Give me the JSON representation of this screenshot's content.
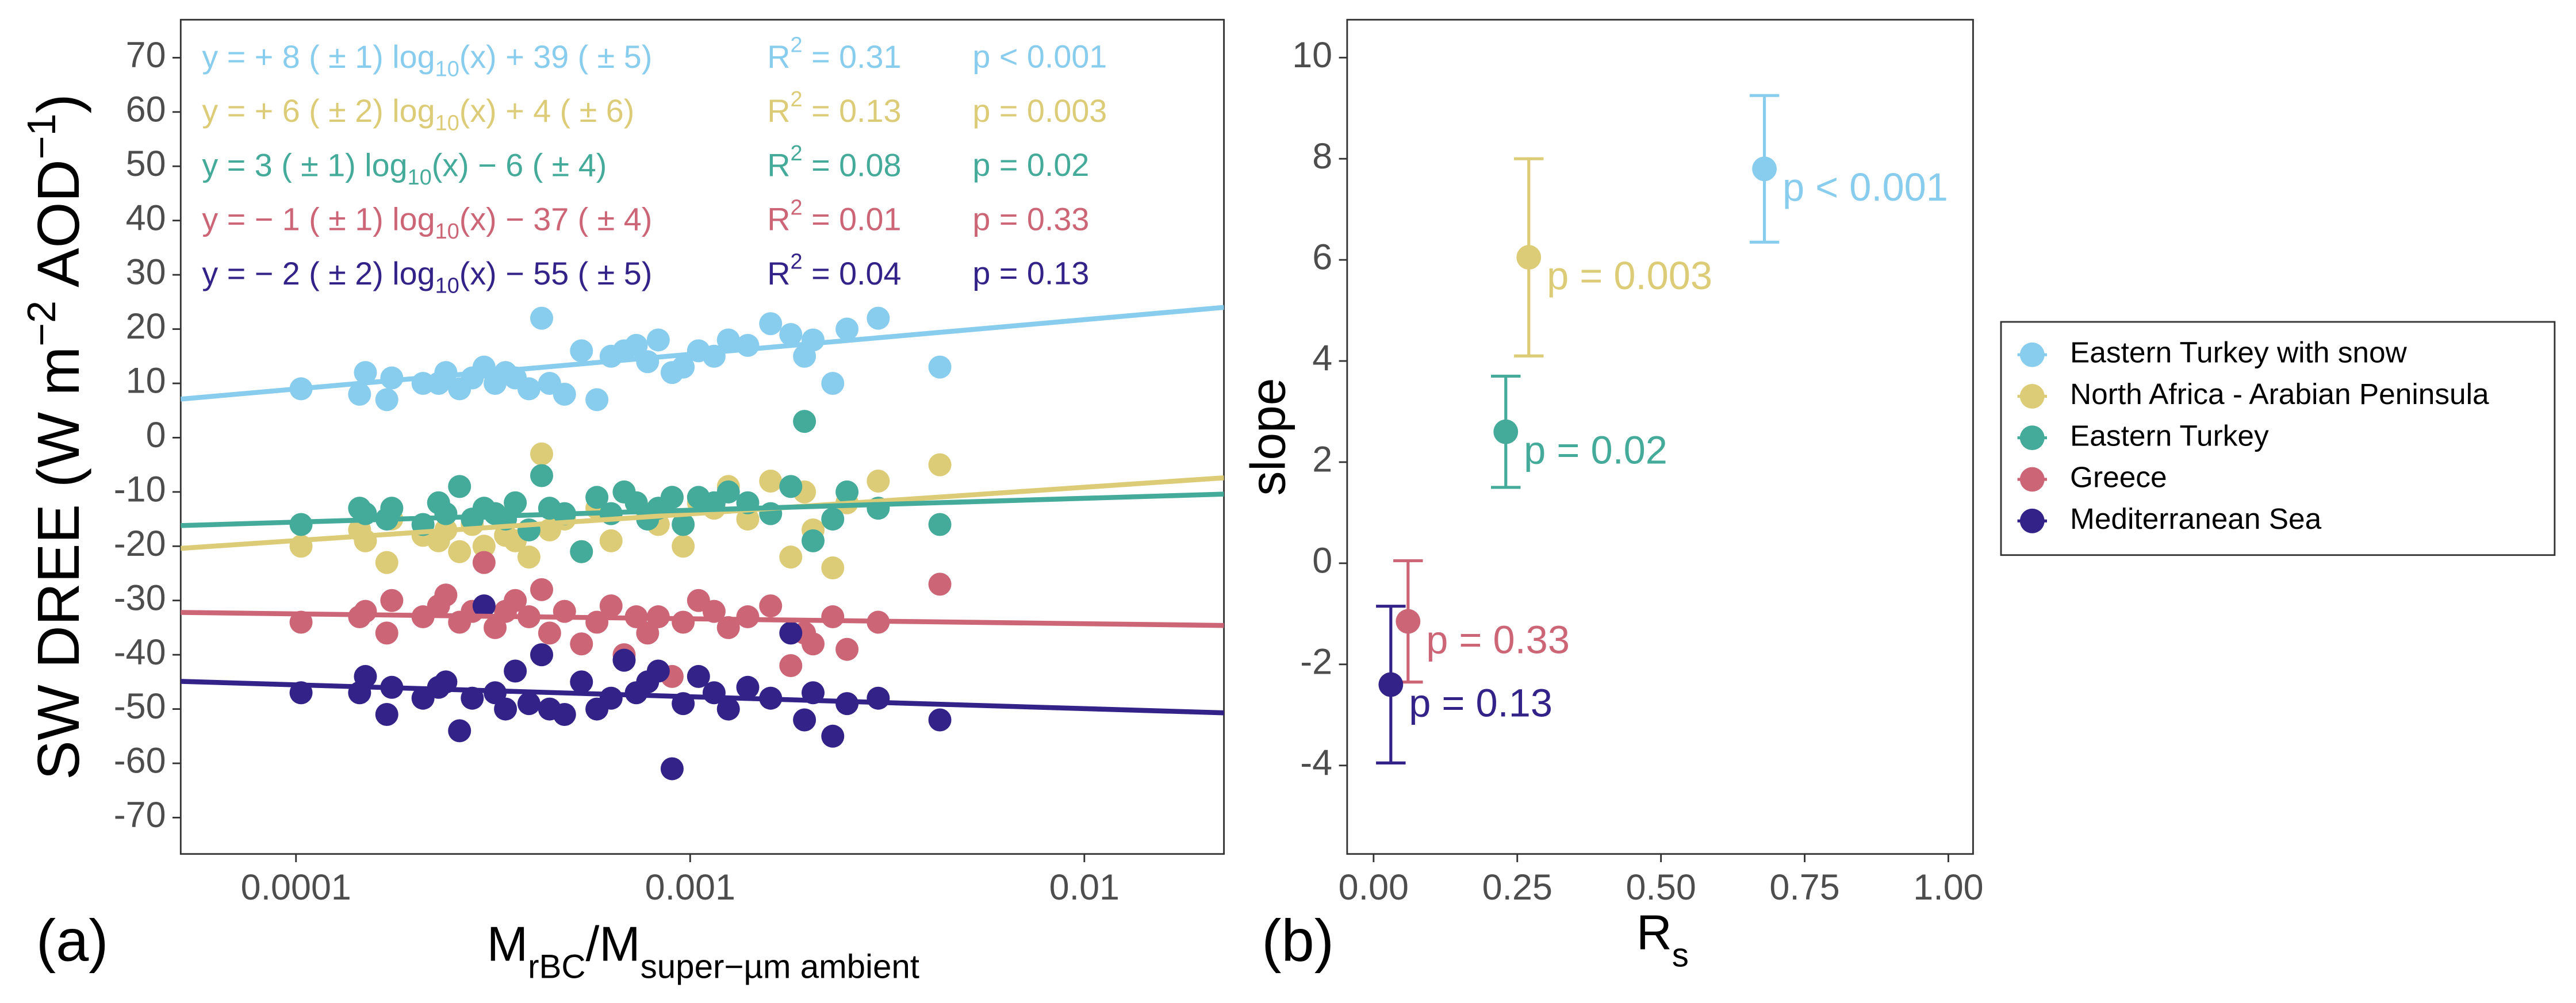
{
  "chart_data": [
    {
      "type": "scatter",
      "panel_label": "(a)",
      "x_label": [
        "M",
        "rBC",
        "/M",
        "super−µm ambient"
      ],
      "y_label": [
        "SW DREE (W m",
        "−2",
        " AOD",
        "−1",
        ")"
      ],
      "xlog": true,
      "xlim": [
        5.1e-05,
        0.0226
      ],
      "xticks": [
        0.0001,
        0.001,
        0.01
      ],
      "ylim": [
        -76.7,
        77
      ],
      "yticks": [
        -70,
        -60,
        -50,
        -40,
        -30,
        -20,
        -10,
        0,
        10,
        20,
        30,
        40,
        50,
        60,
        70
      ],
      "x": [
        0.000103,
        0.000145,
        0.00015,
        0.00017,
        0.000175,
        0.00021,
        0.00023,
        0.00024,
        0.00026,
        0.00028,
        0.0003,
        0.00032,
        0.00034,
        0.00036,
        0.00039,
        0.00042,
        0.00044,
        0.00048,
        0.00053,
        0.00058,
        0.00063,
        0.00068,
        0.00073,
        0.00078,
        0.00083,
        0.0009,
        0.00096,
        0.00105,
        0.00115,
        0.00125,
        0.0014,
        0.0016,
        0.0018,
        0.00195,
        0.00205,
        0.0023,
        0.0025,
        0.003,
        0.0043
      ],
      "series": [
        {
          "color": "#88ccee",
          "values": [
            9,
            8,
            12,
            7,
            11,
            10,
            10,
            12,
            9,
            11,
            13,
            10,
            12,
            11,
            9,
            22,
            10,
            8,
            16,
            7,
            15,
            16,
            17,
            14,
            18,
            12,
            13,
            16,
            15,
            18,
            17,
            21,
            19,
            15,
            18,
            10,
            20,
            22,
            13
          ],
          "fit": {
            "x": [
              5.1e-05,
              0.0226
            ],
            "y": [
              7.1,
              24.0
            ]
          },
          "annotation": {
            "eq": [
              "y = + 8 ( ± 1) log",
              "10",
              "(x) + 39 ( ± 5)"
            ],
            "r2": [
              "R",
              "2",
              " = 0.31"
            ],
            "p": "p < 0.001"
          }
        },
        {
          "color": "#ddcc77",
          "values": [
            -20,
            -17,
            -19,
            -23,
            -15,
            -18,
            -19,
            -17,
            -21,
            -16,
            -20,
            -14,
            -18,
            -19,
            -22,
            -3,
            -17,
            -15,
            -21,
            -13,
            -19,
            -10,
            -12,
            -14,
            -16,
            -11,
            -20,
            -12,
            -13,
            -9,
            -15,
            -8,
            -22,
            -10,
            -17,
            -24,
            -12,
            -8,
            -5
          ],
          "fit": {
            "x": [
              5.1e-05,
              0.0226
            ],
            "y": [
              -20.4,
              -7.4
            ]
          },
          "annotation": {
            "eq": [
              "y = + 6 ( ± 2) log",
              "10",
              "(x) + 4 ( ± 6)"
            ],
            "r2": [
              "R",
              "2",
              " = 0.13"
            ],
            "p": "p = 0.003"
          }
        },
        {
          "color": "#44aa99",
          "values": [
            -16,
            -13,
            -14,
            -15,
            -13,
            -16,
            -12,
            -14,
            -9,
            -15,
            -13,
            -14,
            -15,
            -12,
            -17,
            -7,
            -13,
            -14,
            -21,
            -11,
            -14,
            -10,
            -12,
            -15,
            -13,
            -11,
            -16,
            -11,
            -12,
            -10,
            -12,
            -14,
            -9,
            3,
            -19,
            -15,
            -10,
            -13,
            -16
          ],
          "fit": {
            "x": [
              5.1e-05,
              0.0226
            ],
            "y": [
              -16.2,
              -10.4
            ]
          },
          "annotation": {
            "eq": [
              "y = 3 ( ± 1) log",
              "10",
              "(x) − 6 ( ± 4)"
            ],
            "r2": [
              "R",
              "2",
              " = 0.08"
            ],
            "p": "p = 0.02"
          }
        },
        {
          "color": "#cc6677",
          "values": [
            -34,
            -33,
            -32,
            -36,
            -30,
            -33,
            -31,
            -29,
            -34,
            -32,
            -23,
            -35,
            -32,
            -30,
            -33,
            -28,
            -36,
            -32,
            -38,
            -34,
            -31,
            -40,
            -33,
            -36,
            -33,
            -44,
            -34,
            -30,
            -32,
            -35,
            -33,
            -31,
            -42,
            -36,
            -38,
            -33,
            -39,
            -34,
            -27
          ],
          "fit": {
            "x": [
              5.1e-05,
              0.0226
            ],
            "y": [
              -32.2,
              -34.6
            ]
          },
          "annotation": {
            "eq": [
              "y = − 1 ( ± 1) log",
              "10",
              "(x) − 37 ( ± 4)"
            ],
            "r2": [
              "R",
              "2",
              " = 0.01"
            ],
            "p": "p = 0.33"
          }
        },
        {
          "color": "#332288",
          "values": [
            -47,
            -47,
            -44,
            -51,
            -46,
            -48,
            -46,
            -45,
            -54,
            -48,
            -31,
            -47,
            -50,
            -43,
            -49,
            -40,
            -50,
            -51,
            -45,
            -50,
            -48,
            -41,
            -47,
            -45,
            -43,
            -61,
            -49,
            -44,
            -47,
            -50,
            -46,
            -48,
            -36,
            -52,
            -47,
            -55,
            -49,
            -48,
            -52
          ],
          "fit": {
            "x": [
              5.1e-05,
              0.0226
            ],
            "y": [
              -44.9,
              -50.7
            ]
          },
          "annotation": {
            "eq": [
              "y = − 2 ( ± 2) log",
              "10",
              "(x) − 55 ( ± 5)"
            ],
            "r2": [
              "R",
              "2",
              " = 0.04"
            ],
            "p": "p = 0.13"
          }
        }
      ]
    },
    {
      "type": "errorbar",
      "panel_label": "(b)",
      "x_label": [
        "R",
        "s"
      ],
      "y_label": "slope",
      "xlim": [
        -0.046,
        1.043
      ],
      "xticks": [
        {
          "value": 0,
          "label": "0.00"
        },
        {
          "value": 0.25,
          "label": "0.25"
        },
        {
          "value": 0.5,
          "label": "0.50"
        },
        {
          "value": 0.75,
          "label": "0.75"
        },
        {
          "value": 1,
          "label": "1.00"
        }
      ],
      "ylim": [
        -5.75,
        10.75
      ],
      "yticks": [
        -4,
        -2,
        0,
        2,
        4,
        6,
        8,
        10
      ],
      "legend": "right",
      "series": [
        {
          "name": "Eastern Turkey with snow",
          "color": "#88ccee",
          "x": 0.68,
          "value": 7.8,
          "error": 1.45,
          "label": "p < 0.001"
        },
        {
          "name": "North Africa - Arabian Peninsula",
          "color": "#ddcc77",
          "x": 0.27,
          "value": 6.05,
          "error": 1.95,
          "label": "p = 0.003"
        },
        {
          "name": "Eastern Turkey",
          "color": "#44aa99",
          "x": 0.23,
          "value": 2.6,
          "error": 1.1,
          "label": "p = 0.02"
        },
        {
          "name": "Greece",
          "color": "#cc6677",
          "x": 0.06,
          "value": -1.15,
          "error": 1.2,
          "label": "p = 0.33"
        },
        {
          "name": "Mediterranean Sea",
          "color": "#332288",
          "x": 0.03,
          "value": -2.4,
          "error": 1.55,
          "label": "p = 0.13"
        }
      ]
    }
  ]
}
